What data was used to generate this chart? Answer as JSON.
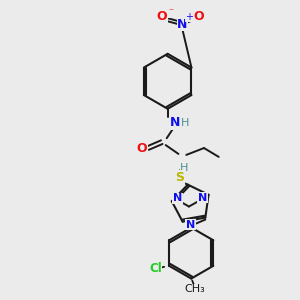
{
  "bg_color": "#ebebeb",
  "bond_color": "#1a1a1a",
  "colors": {
    "N": "#1010ee",
    "O": "#ee1010",
    "S": "#b8b800",
    "Cl": "#22cc22",
    "H": "#4a9090",
    "C": "#1a1a1a"
  }
}
